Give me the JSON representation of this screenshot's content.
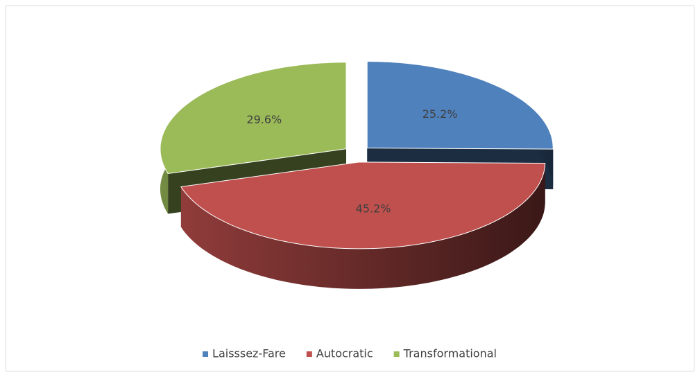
{
  "chart_data": {
    "type": "pie",
    "is_3d": true,
    "categories": [
      "Laisssez-Fare",
      "Autocratic",
      "Transformational"
    ],
    "values": [
      25.2,
      45.2,
      29.6
    ],
    "value_labels": [
      "25.2%",
      "45.2%",
      "29.6%"
    ],
    "colors": [
      "#4f81bd",
      "#c0504d",
      "#9bbb59"
    ],
    "legend": "bottom"
  }
}
